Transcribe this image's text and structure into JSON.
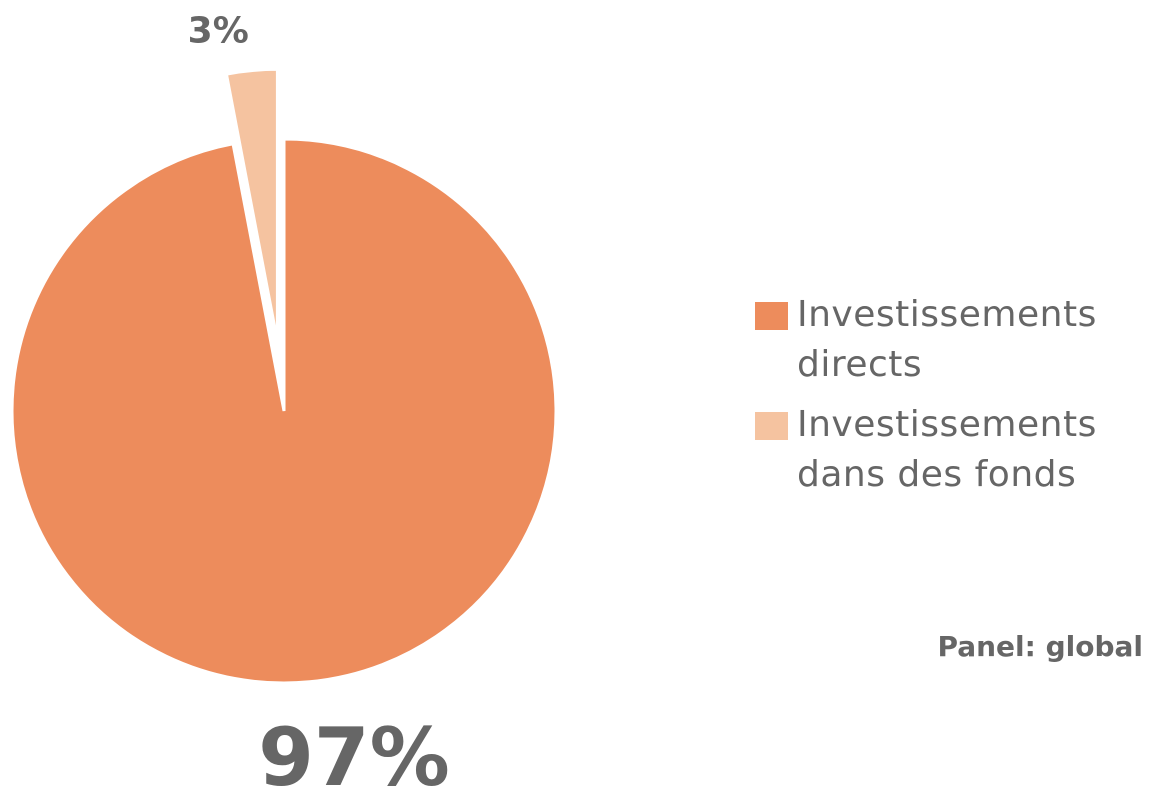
{
  "chart_data": {
    "type": "pie",
    "categories": [
      "Investissements directs",
      "Investissements dans des fonds"
    ],
    "values": [
      97,
      3
    ],
    "value_labels": [
      "97%",
      "3%"
    ],
    "colors": [
      "#ED8C5C",
      "#F5C3A0"
    ],
    "explode": [
      false,
      true
    ],
    "legend": "right",
    "annotation": "Panel: global"
  }
}
